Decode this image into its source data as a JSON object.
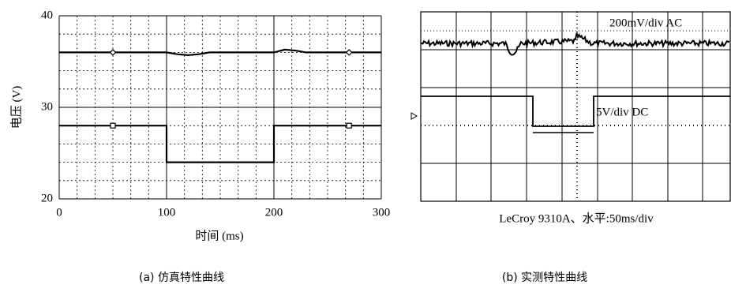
{
  "chart_data": [
    {
      "type": "line",
      "xlabel": "时间 (ms)",
      "ylabel": "电压 (V)",
      "caption": "(a) 仿真特性曲线",
      "xlim": [
        0,
        300
      ],
      "ylim": [
        20,
        40
      ],
      "xticks": [
        0,
        100,
        200,
        300
      ],
      "yticks": [
        20,
        30,
        40
      ],
      "minor_xticks": [
        16.7,
        33.3,
        50,
        66.7,
        83.3,
        116.7,
        133.3,
        150,
        166.7,
        183.3,
        216.7,
        233.3,
        250,
        266.7,
        283.3
      ],
      "minor_yticks": [
        22,
        24,
        26,
        28,
        32,
        34,
        36,
        38
      ],
      "grid": true,
      "series": [
        {
          "color": "#000000",
          "marker": "diamond",
          "marker_x": [
            50,
            270
          ],
          "x": [
            0,
            50,
            100,
            110,
            120,
            130,
            140,
            200,
            210,
            220,
            230,
            240,
            270,
            300
          ],
          "values": [
            36,
            36,
            36,
            35.8,
            35.7,
            35.8,
            36,
            36,
            36.3,
            36.2,
            36,
            36,
            36,
            36
          ]
        },
        {
          "color": "#000000",
          "marker": "square",
          "marker_x": [
            50,
            270
          ],
          "x": [
            0,
            50,
            100,
            100,
            200,
            200,
            270,
            300
          ],
          "values": [
            28,
            28,
            28,
            24,
            24,
            28,
            28,
            28
          ]
        }
      ]
    },
    {
      "type": "scope",
      "labels": [
        "200mV/div  AC",
        "5V/div  DC"
      ],
      "footer": "LeCroy 9310A、水平:50ms/div",
      "caption": "(b) 实测特性曲线"
    }
  ]
}
